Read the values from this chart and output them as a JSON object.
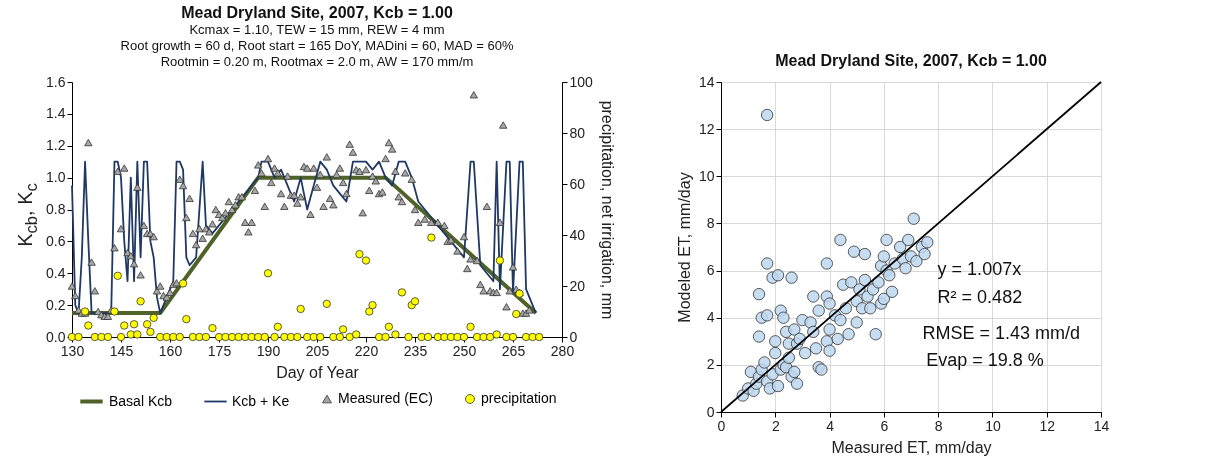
{
  "chart_data": [
    {
      "type": "line",
      "title": "Mead Dryland Site, 2007, Kcb = 1.00",
      "annotations": [
        "Kcmax = 1.10, TEW = 15 mm, REW = 4 mm",
        "Root growth  = 60 d, Root start =  165 DoY, MADini = 60, MAD = 60%",
        "Rootmin = 0.20 m, Rootmax = 2.0 m, AW  = 170 mm/m"
      ],
      "xlabel": "Day of Year",
      "ylabel": "K$_{cb}$, K$_{c}$",
      "y2label": "precipitation, net irrigation, mm",
      "xlim": [
        130,
        280
      ],
      "xticks": [
        130,
        145,
        160,
        175,
        190,
        205,
        220,
        235,
        250,
        265,
        280
      ],
      "ylim": [
        0,
        1.6
      ],
      "yticks": [
        {
          "value": 0,
          "label": "0.0"
        },
        0.2,
        0.4,
        0.6,
        0.8,
        {
          "value": 1,
          "label": "1.0"
        },
        1.2,
        1.4,
        1.6
      ],
      "y2lim": [
        0,
        100
      ],
      "y2ticks": [
        0,
        20,
        40,
        60,
        80,
        100
      ],
      "grid": false,
      "legend": "bottom",
      "series": [
        {
          "name": "Basal Kcb",
          "type": "line",
          "color": "#4f6228",
          "x": [
            130,
            157,
            187,
            226,
            272
          ],
          "values": [
            0.15,
            0.15,
            1.0,
            1.0,
            0.15
          ]
        },
        {
          "name": "Kcb + Ke",
          "type": "line",
          "color": "#1f3864",
          "x": [
            130,
            131,
            132,
            133,
            134,
            135,
            136,
            137,
            142,
            143,
            144,
            145,
            146,
            147,
            148,
            149,
            150,
            151,
            152,
            153,
            154,
            155,
            156,
            157,
            158,
            159,
            160,
            161,
            162,
            163,
            164,
            165,
            166,
            168,
            170,
            171,
            173,
            175,
            177,
            179,
            181,
            183,
            185,
            187,
            188,
            190,
            192,
            194,
            196,
            198,
            200,
            202,
            204,
            206,
            208,
            210,
            212,
            214,
            216,
            218,
            220,
            222,
            224,
            226,
            228,
            230,
            232,
            234,
            236,
            238,
            240,
            242,
            244,
            246,
            248,
            250,
            252,
            253,
            255,
            257,
            259,
            260,
            261,
            263,
            264,
            265,
            267,
            268,
            269,
            271,
            272
          ],
          "values": [
            0.95,
            0.2,
            0.15,
            0.5,
            1.1,
            0.6,
            0.15,
            0.15,
            0.15,
            1.1,
            1.1,
            1.0,
            0.6,
            0.35,
            1.0,
            0.35,
            1.1,
            0.5,
            1.1,
            1.1,
            0.6,
            0.5,
            0.25,
            0.15,
            0.2,
            0.25,
            0.3,
            0.35,
            1.1,
            1.1,
            1.05,
            0.5,
            0.45,
            0.5,
            1.1,
            0.7,
            0.65,
            0.7,
            0.75,
            0.8,
            0.85,
            0.9,
            0.95,
            1.0,
            1.1,
            1.1,
            1.0,
            1.05,
            0.95,
            0.85,
            1.0,
            0.8,
            0.95,
            1.1,
            1.05,
            0.95,
            0.9,
            0.85,
            1.1,
            1.1,
            1.1,
            1.05,
            1.1,
            1.0,
            0.95,
            1.1,
            1.1,
            1.0,
            0.85,
            0.8,
            0.75,
            0.7,
            0.65,
            0.6,
            0.55,
            0.5,
            1.1,
            1.1,
            0.45,
            0.4,
            0.35,
            1.1,
            0.3,
            1.1,
            1.1,
            0.28,
            1.1,
            1.1,
            0.3,
            0.2,
            0.15
          ]
        },
        {
          "name": "Measured (EC)",
          "type": "scatter",
          "marker": "triangle",
          "color": "#a6a6a6",
          "x": [
            130,
            131,
            132,
            133,
            134,
            135,
            136,
            137,
            138,
            139,
            140,
            141,
            142,
            143,
            144,
            145,
            146,
            147,
            148,
            149,
            150,
            151,
            152,
            153,
            154,
            155,
            156,
            157,
            158,
            159,
            160,
            161,
            162,
            163,
            164,
            165,
            166,
            167,
            168,
            169,
            170,
            171,
            172,
            173,
            174,
            175,
            176,
            177,
            178,
            179,
            180,
            181,
            182,
            183,
            184,
            185,
            186,
            187,
            188,
            189,
            190,
            191,
            192,
            193,
            194,
            195,
            196,
            197,
            198,
            199,
            200,
            201,
            202,
            203,
            204,
            205,
            206,
            207,
            208,
            209,
            210,
            211,
            212,
            213,
            214,
            215,
            216,
            217,
            218,
            219,
            220,
            221,
            222,
            223,
            224,
            225,
            226,
            227,
            228,
            229,
            230,
            231,
            232,
            234,
            235,
            236,
            238,
            240,
            242,
            244,
            245,
            246,
            248,
            250,
            251,
            252,
            253,
            254,
            255,
            256,
            257,
            258,
            259,
            260,
            261,
            262,
            263,
            264,
            265,
            266,
            267,
            268,
            269,
            270
          ],
          "values": [
            0.32,
            0.26,
            0.17,
            0.15,
            0.15,
            1.22,
            0.47,
            0.29,
            0.16,
            0.14,
            0.13,
            0.13,
            0.17,
            0.56,
            1.04,
            0.68,
            1.06,
            0.53,
            0.51,
            0.46,
            0.94,
            0.39,
            0.7,
            0.65,
            0.65,
            0.63,
            0.29,
            0.32,
            0.26,
            0.25,
            0.28,
            0.33,
            0.34,
            0.99,
            0.95,
            0.75,
            0.87,
            0.65,
            0.58,
            0.68,
            0.62,
            0.68,
            0.66,
            0.71,
            0.8,
            0.77,
            0.75,
            0.78,
            0.85,
            0.8,
            0.83,
            0.88,
            0.88,
            0.72,
            0.66,
            0.72,
            0.92,
            1.08,
            1.03,
            0.82,
            1.12,
            0.97,
            1.06,
            1.03,
            0.9,
            0.82,
            1.01,
            0.89,
            0.89,
            0.84,
            0.88,
            1.07,
            1.06,
            0.77,
            1.06,
            0.94,
            1.02,
            0.82,
            1.13,
            0.87,
            0.83,
            1.02,
            1.06,
            0.97,
            0.9,
            1.21,
            1.16,
            1.05,
            1.04,
            0.78,
            1.05,
            0.92,
            1.01,
            0.98,
            0.9,
            0.91,
            1.12,
            1.22,
            1.18,
            1.04,
            0.88,
            0.85,
            1.03,
            0.99,
            0.8,
            0.72,
            0.74,
            0.72,
            0.72,
            0.7,
            0.6,
            0.61,
            0.54,
            0.63,
            0.43,
            0.49,
            1.52,
            0.48,
            0.33,
            0.29,
            0.82,
            0.29,
            0.28,
            0.28,
            0.72,
            1.33,
            0.19,
            0.29,
            0.44,
            0.3,
            0.28,
            0.15,
            0.15,
            0.17
          ]
        },
        {
          "name": "precipitation",
          "type": "scatter",
          "marker": "circle",
          "axis": "y2",
          "color": "#ffff00",
          "x": [
            130,
            132,
            134,
            135,
            137,
            139,
            141,
            143,
            144,
            145,
            146,
            148,
            149,
            150,
            151,
            153,
            154,
            155,
            157,
            159,
            161,
            163,
            164,
            165,
            167,
            169,
            171,
            173,
            175,
            177,
            179,
            181,
            183,
            185,
            187,
            189,
            190,
            192,
            193,
            195,
            197,
            199,
            200,
            202,
            204,
            206,
            208,
            210,
            212,
            213,
            215,
            217,
            218,
            220,
            221,
            222,
            224,
            226,
            227,
            229,
            231,
            233,
            234,
            235,
            237,
            239,
            240,
            242,
            244,
            246,
            248,
            250,
            252,
            254,
            256,
            258,
            260,
            261,
            263,
            265,
            266,
            267,
            269,
            271,
            273
          ],
          "values": [
            0,
            0,
            10,
            4.5,
            0,
            0,
            0,
            10,
            24,
            0,
            4.5,
            1,
            5,
            1,
            14,
            5,
            2,
            7.5,
            0,
            0,
            0,
            0,
            21,
            7,
            0,
            0,
            0,
            3.5,
            0,
            0,
            0,
            0,
            0,
            0,
            0,
            0,
            25,
            0,
            4,
            0,
            0,
            0,
            11,
            0,
            0,
            0,
            13,
            0,
            0,
            3,
            0,
            1,
            32.5,
            30,
            10,
            12.5,
            0,
            0,
            4,
            1,
            17.5,
            0,
            12.5,
            14,
            0,
            0,
            39,
            0,
            0,
            0,
            0,
            0,
            4,
            0,
            0,
            0,
            1,
            30,
            0,
            0,
            9,
            17,
            0,
            0,
            0
          ]
        }
      ]
    },
    {
      "type": "scatter",
      "title": "Mead Dryland Site, 2007, Kcb = 1.00",
      "annotations": [
        "y = 1.007x",
        "R² = 0.482",
        "RMSE = 1.43 mm/d",
        "Evap = 19.8 %"
      ],
      "xlabel": "Measured ET, mm/day",
      "ylabel": "Modeled ET, mm/day",
      "xlim": [
        0,
        14
      ],
      "xticks": [
        0,
        2,
        4,
        6,
        8,
        10,
        12,
        14
      ],
      "ylim": [
        0,
        14
      ],
      "yticks": [
        0,
        2,
        4,
        6,
        8,
        10,
        12,
        14
      ],
      "grid": true,
      "series": [
        {
          "type": "scatter",
          "marker": "circle",
          "color": "#bdd7ee",
          "x": [
            1.7,
            0.8,
            1.0,
            1.1,
            1.2,
            1.3,
            1.4,
            1.5,
            1.6,
            1.7,
            1.8,
            1.9,
            2.0,
            2.0,
            2.1,
            2.2,
            2.3,
            2.4,
            2.5,
            2.6,
            2.7,
            2.8,
            1.4,
            1.7,
            1.9,
            2.1,
            2.6,
            1.5,
            1.7,
            1.4,
            2.2,
            2.3,
            2.4,
            2.5,
            2.7,
            2.8,
            2.9,
            3.0,
            3.1,
            3.3,
            3.4,
            3.4,
            3.5,
            3.6,
            3.6,
            3.7,
            3.9,
            3.9,
            3.9,
            4.0,
            4.0,
            4.0,
            4.2,
            4.3,
            4.4,
            4.4,
            4.5,
            4.6,
            4.7,
            4.8,
            4.9,
            5.0,
            5.0,
            5.1,
            5.2,
            5.3,
            5.3,
            5.4,
            5.5,
            5.6,
            5.7,
            5.8,
            5.9,
            5.9,
            6.0,
            6.0,
            6.1,
            6.1,
            6.2,
            6.3,
            6.4,
            6.6,
            6.7,
            6.8,
            6.9,
            7.0,
            7.1,
            7.2,
            7.4,
            7.5,
            7.6
          ],
          "values": [
            12.6,
            0.7,
            1.0,
            1.7,
            0.9,
            1.2,
            1.5,
            1.8,
            2.1,
            1.3,
            1.0,
            1.6,
            2.5,
            3.0,
            1.1,
            1.8,
            2.0,
            1.9,
            2.3,
            1.5,
            1.7,
            1.2,
            5.0,
            6.3,
            5.7,
            5.8,
            5.7,
            4.0,
            4.1,
            3.2,
            4.3,
            4.0,
            3.4,
            2.9,
            3.5,
            2.9,
            3.1,
            3.9,
            2.5,
            3.8,
            3.4,
            4.9,
            2.7,
            4.3,
            1.9,
            1.8,
            3.0,
            4.9,
            6.3,
            2.6,
            3.5,
            4.6,
            4.1,
            3.1,
            3.9,
            7.3,
            5.4,
            4.4,
            3.3,
            5.5,
            6.8,
            3.8,
            4.7,
            5.2,
            4.4,
            6.7,
            5.6,
            4.9,
            4.4,
            5.2,
            3.3,
            5.5,
            6.2,
            4.6,
            6.6,
            4.8,
            7.3,
            6.0,
            5.8,
            5.1,
            6.3,
            7.0,
            6.5,
            6.1,
            7.3,
            6.6,
            8.2,
            6.4,
            7.0,
            6.7,
            7.2
          ]
        },
        {
          "type": "line",
          "color": "#000000",
          "x": [
            0,
            14
          ],
          "values": [
            0,
            14
          ]
        }
      ]
    }
  ]
}
